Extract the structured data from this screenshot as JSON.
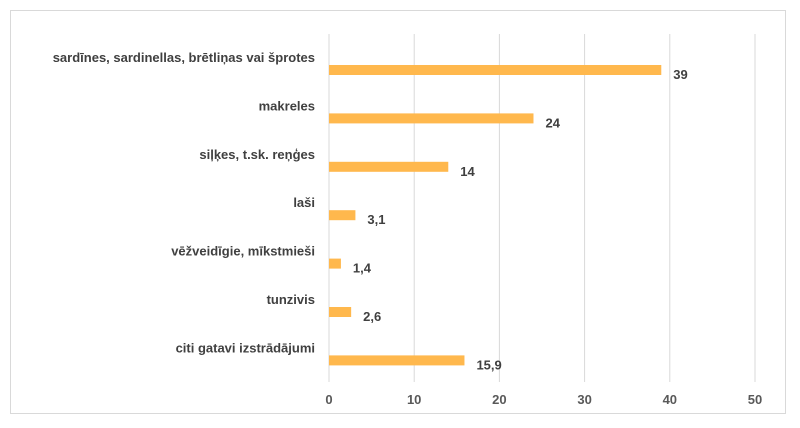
{
  "chart_data": {
    "type": "bar",
    "orientation": "horizontal",
    "categories": [
      "sardīnes, sardinellas, brētliņas vai šprotes",
      "makreles",
      "siļķes, t.sk. reņģes",
      "laši",
      "vēžveidīgie, mīkstmieši",
      "tunzivis",
      "citi gatavi izstrādājumi"
    ],
    "values": [
      39,
      24,
      14,
      3.1,
      1.4,
      2.6,
      15.9
    ],
    "value_labels": [
      "39",
      "24",
      "14",
      "3,1",
      "1,4",
      "2,6",
      "15,9"
    ],
    "xlim": [
      0,
      50
    ],
    "xticks": [
      0,
      10,
      20,
      30,
      40,
      50
    ],
    "xtick_labels": [
      "0",
      "10",
      "20",
      "30",
      "40",
      "50"
    ],
    "title": "",
    "xlabel": "",
    "ylabel": "",
    "grid": true,
    "legend": false,
    "bar_color": "#FFB84D",
    "grid_color": "#d9d9d9"
  }
}
